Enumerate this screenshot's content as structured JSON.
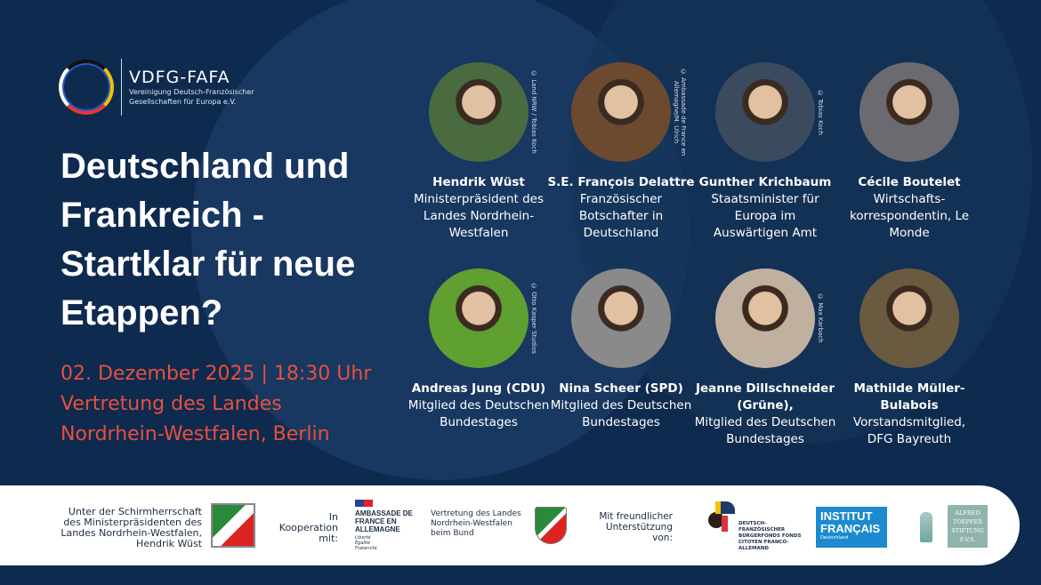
{
  "logo": {
    "name": "VDFG-FAFA",
    "subtitle_line1": "Vereinigung Deutsch-Französischer",
    "subtitle_line2": "Gesellschaften für Europa e.V."
  },
  "title": "Deutschland und Frankreich - Startklar für neue Etappen?",
  "event": {
    "date_time": "02. Dezember 2025 | 18:30 Uhr",
    "venue_line1": "Vertretung des Landes",
    "venue_line2": "Nordrhein-Westfalen, Berlin"
  },
  "speakers": [
    {
      "name": "Hendrik Wüst",
      "role": "Ministerpräsident des Landes Nordrhein-Westfalen",
      "credit": "© Land NRW / Tobias Koch"
    },
    {
      "name": "S.E. François Delattre",
      "role": "Französischer Botschafter in Deutschland",
      "credit": "© Ambassade de France en Allemagne/M. Ulrich"
    },
    {
      "name": "Gunther Krichbaum",
      "role": "Staatsminister für Europa im Auswärtigen Amt",
      "credit": "© Tobias Koch"
    },
    {
      "name": "Cécile Boutelet",
      "role": "Wirtschafts-korrespondentin, Le Monde",
      "credit": ""
    },
    {
      "name": "Andreas Jung (CDU)",
      "role": "Mitglied des Deutschen Bundestages",
      "credit": "© Otto Kasper Studios"
    },
    {
      "name": "Nina Scheer (SPD)",
      "role": "Mitglied des Deutschen Bundestages",
      "credit": ""
    },
    {
      "name": "Jeanne Dillschneider (Grüne),",
      "role": "Mitglied des Deutschen Bundestages",
      "credit": "© Max Karbach"
    },
    {
      "name": "Mathilde Müller-Bulabois",
      "role": "Vorstandsmitglied, DFG Bayreuth",
      "credit": ""
    }
  ],
  "footer": {
    "patronage": "Unter der Schirmherrschaft des Ministerpräsidenten des Landes Nordrhein-Westfalen, Hendrik Wüst",
    "cooperation": "In Kooperation mit:",
    "embassy": "AMBASSADE DE FRANCE EN ALLEMAGNE",
    "embassy_motto": "Liberté Égalité Fraternité",
    "nrw_rep": "Vertretung des Landes Nordrhein-Westfalen beim Bund",
    "support": "Mit freundlicher Unterstützung von:",
    "fund": "DEUTSCH-FRANZÖSISCHER BÜRGERFONDS FONDS CITOYEN FRANCO-ALLEMAND",
    "institut": "INSTITUT FRANÇAIS",
    "institut_sub": "Deutschland",
    "toepfer": "ALFRED TOEPFER STIFTUNG F.V.S."
  },
  "colors": {
    "background": "#0e2a4f",
    "accent": "#e8503c",
    "institut": "#1b8ad0",
    "toepfer": "#8fb3ad"
  }
}
